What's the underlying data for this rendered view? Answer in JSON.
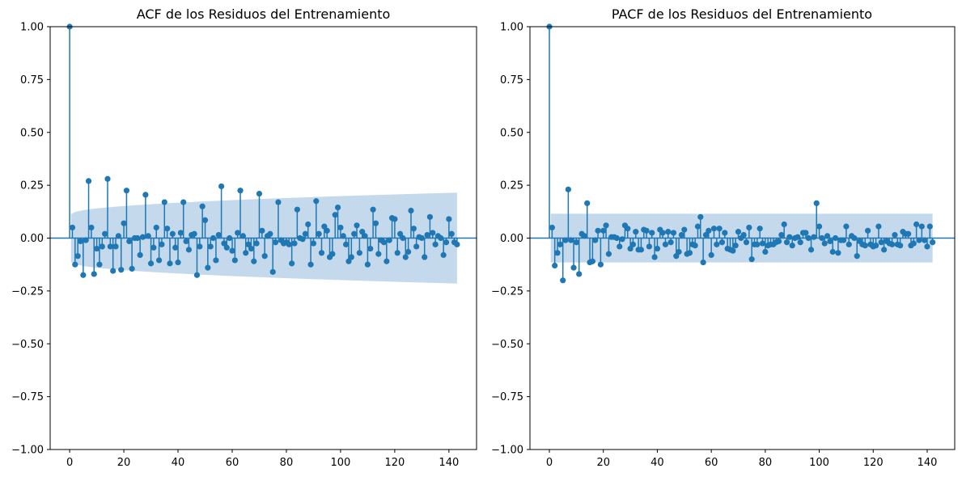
{
  "chart_data": [
    {
      "type": "stem",
      "title": "ACF de los Residuos del Entrenamiento",
      "xlabel": "",
      "ylabel": "",
      "xlim": [
        -7.2,
        150.2
      ],
      "ylim": [
        -1.0,
        1.0
      ],
      "xticks": [
        0,
        20,
        40,
        60,
        80,
        100,
        120,
        140
      ],
      "yticks": [
        -1.0,
        -0.75,
        -0.5,
        -0.25,
        0.0,
        0.25,
        0.5,
        0.75,
        1.0
      ],
      "ytick_labels": [
        "−1.00",
        "−0.75",
        "−0.50",
        "−0.25",
        "0.00",
        "0.25",
        "0.50",
        "0.75",
        "1.00"
      ],
      "grid": false,
      "lags": "0-143",
      "confidence_band": {
        "lag1": 0.115,
        "lag143": 0.215
      },
      "colors": {
        "marker": "#1f77b4",
        "band": "#c5d9ec"
      },
      "values": [
        1.0,
        0.05,
        -0.125,
        -0.085,
        -0.015,
        -0.175,
        -0.01,
        0.27,
        0.05,
        -0.17,
        -0.05,
        -0.125,
        -0.04,
        0.02,
        0.28,
        -0.04,
        -0.155,
        -0.04,
        0.01,
        -0.15,
        0.07,
        0.225,
        -0.015,
        -0.145,
        0.0,
        0.0,
        -0.08,
        0.005,
        0.205,
        0.01,
        -0.12,
        -0.045,
        0.05,
        -0.105,
        -0.03,
        0.17,
        0.045,
        -0.12,
        0.02,
        -0.045,
        -0.115,
        0.025,
        0.17,
        -0.015,
        -0.055,
        0.015,
        0.02,
        -0.175,
        -0.04,
        0.15,
        0.085,
        -0.14,
        -0.04,
        0.0,
        -0.105,
        0.015,
        0.245,
        -0.025,
        -0.045,
        0.0,
        -0.06,
        -0.105,
        0.025,
        0.225,
        0.01,
        -0.07,
        -0.03,
        -0.05,
        -0.11,
        -0.025,
        0.21,
        0.035,
        -0.085,
        0.01,
        0.02,
        -0.16,
        -0.02,
        0.17,
        -0.01,
        -0.025,
        -0.02,
        -0.03,
        -0.12,
        -0.025,
        0.135,
        0.0,
        -0.005,
        0.02,
        0.065,
        -0.125,
        -0.025,
        0.175,
        0.02,
        -0.07,
        0.055,
        0.035,
        -0.09,
        -0.075,
        0.11,
        0.145,
        0.05,
        0.01,
        -0.03,
        -0.11,
        -0.09,
        0.02,
        0.06,
        -0.07,
        0.03,
        0.01,
        -0.125,
        -0.05,
        0.135,
        0.07,
        -0.075,
        -0.01,
        -0.02,
        -0.11,
        -0.01,
        0.095,
        0.09,
        -0.07,
        0.02,
        0.0,
        -0.09,
        -0.065,
        0.13,
        0.045,
        -0.04,
        0.005,
        0.0,
        -0.09,
        0.015,
        0.1,
        0.025,
        -0.03,
        0.01,
        0.0,
        -0.08,
        -0.02,
        0.09,
        0.02,
        -0.02,
        -0.03
      ]
    },
    {
      "type": "stem",
      "title": "PACF de los Residuos del Entrenamiento",
      "xlabel": "",
      "ylabel": "",
      "xlim": [
        -7.2,
        150.2
      ],
      "ylim": [
        -1.0,
        1.0
      ],
      "xticks": [
        0,
        20,
        40,
        60,
        80,
        100,
        120,
        140
      ],
      "yticks": [
        -1.0,
        -0.75,
        -0.5,
        -0.25,
        0.0,
        0.25,
        0.5,
        0.75,
        1.0
      ],
      "ytick_labels": [
        "−1.00",
        "−0.75",
        "−0.50",
        "−0.25",
        "0.00",
        "0.25",
        "0.50",
        "0.75",
        "1.00"
      ],
      "grid": false,
      "lags": "0-143",
      "confidence_band": {
        "lag1": 0.115,
        "lag143": 0.115
      },
      "colors": {
        "marker": "#1f77b4",
        "band": "#c5d9ec"
      },
      "values": [
        1.0,
        0.05,
        -0.13,
        -0.07,
        -0.03,
        -0.2,
        -0.01,
        0.23,
        -0.01,
        -0.14,
        -0.02,
        -0.17,
        0.02,
        0.01,
        0.165,
        -0.115,
        -0.11,
        -0.01,
        0.035,
        -0.125,
        0.035,
        0.06,
        -0.075,
        0.005,
        0.005,
        0.0,
        -0.04,
        -0.005,
        0.06,
        0.045,
        -0.05,
        -0.03,
        0.03,
        -0.055,
        -0.055,
        0.04,
        0.035,
        -0.04,
        0.025,
        -0.09,
        -0.05,
        0.04,
        0.025,
        -0.03,
        0.03,
        -0.02,
        0.025,
        -0.085,
        -0.065,
        0.015,
        0.04,
        -0.075,
        -0.07,
        -0.03,
        -0.035,
        0.055,
        0.1,
        -0.115,
        0.015,
        0.035,
        -0.08,
        0.045,
        -0.03,
        0.045,
        -0.02,
        0.025,
        -0.05,
        -0.055,
        -0.06,
        -0.035,
        0.03,
        0.0,
        0.015,
        -0.02,
        0.05,
        -0.1,
        -0.03,
        -0.03,
        0.045,
        -0.025,
        -0.065,
        -0.035,
        -0.03,
        -0.03,
        -0.02,
        -0.015,
        0.015,
        0.065,
        -0.02,
        0.005,
        -0.035,
        0.0,
        0.005,
        -0.02,
        0.025,
        0.025,
        0.0,
        -0.055,
        0.005,
        0.165,
        0.055,
        0.0,
        -0.025,
        0.01,
        -0.015,
        -0.065,
        0.0,
        -0.07,
        -0.01,
        -0.01,
        0.055,
        -0.03,
        0.01,
        0.0,
        -0.085,
        -0.015,
        -0.03,
        -0.035,
        0.035,
        -0.03,
        -0.04,
        -0.035,
        0.055,
        -0.02,
        -0.055,
        -0.015,
        -0.025,
        -0.03,
        0.015,
        -0.03,
        -0.035,
        0.03,
        0.02,
        0.02,
        -0.035,
        -0.025,
        0.065,
        -0.01,
        0.055,
        -0.01,
        -0.04,
        0.055,
        -0.02
      ]
    }
  ]
}
